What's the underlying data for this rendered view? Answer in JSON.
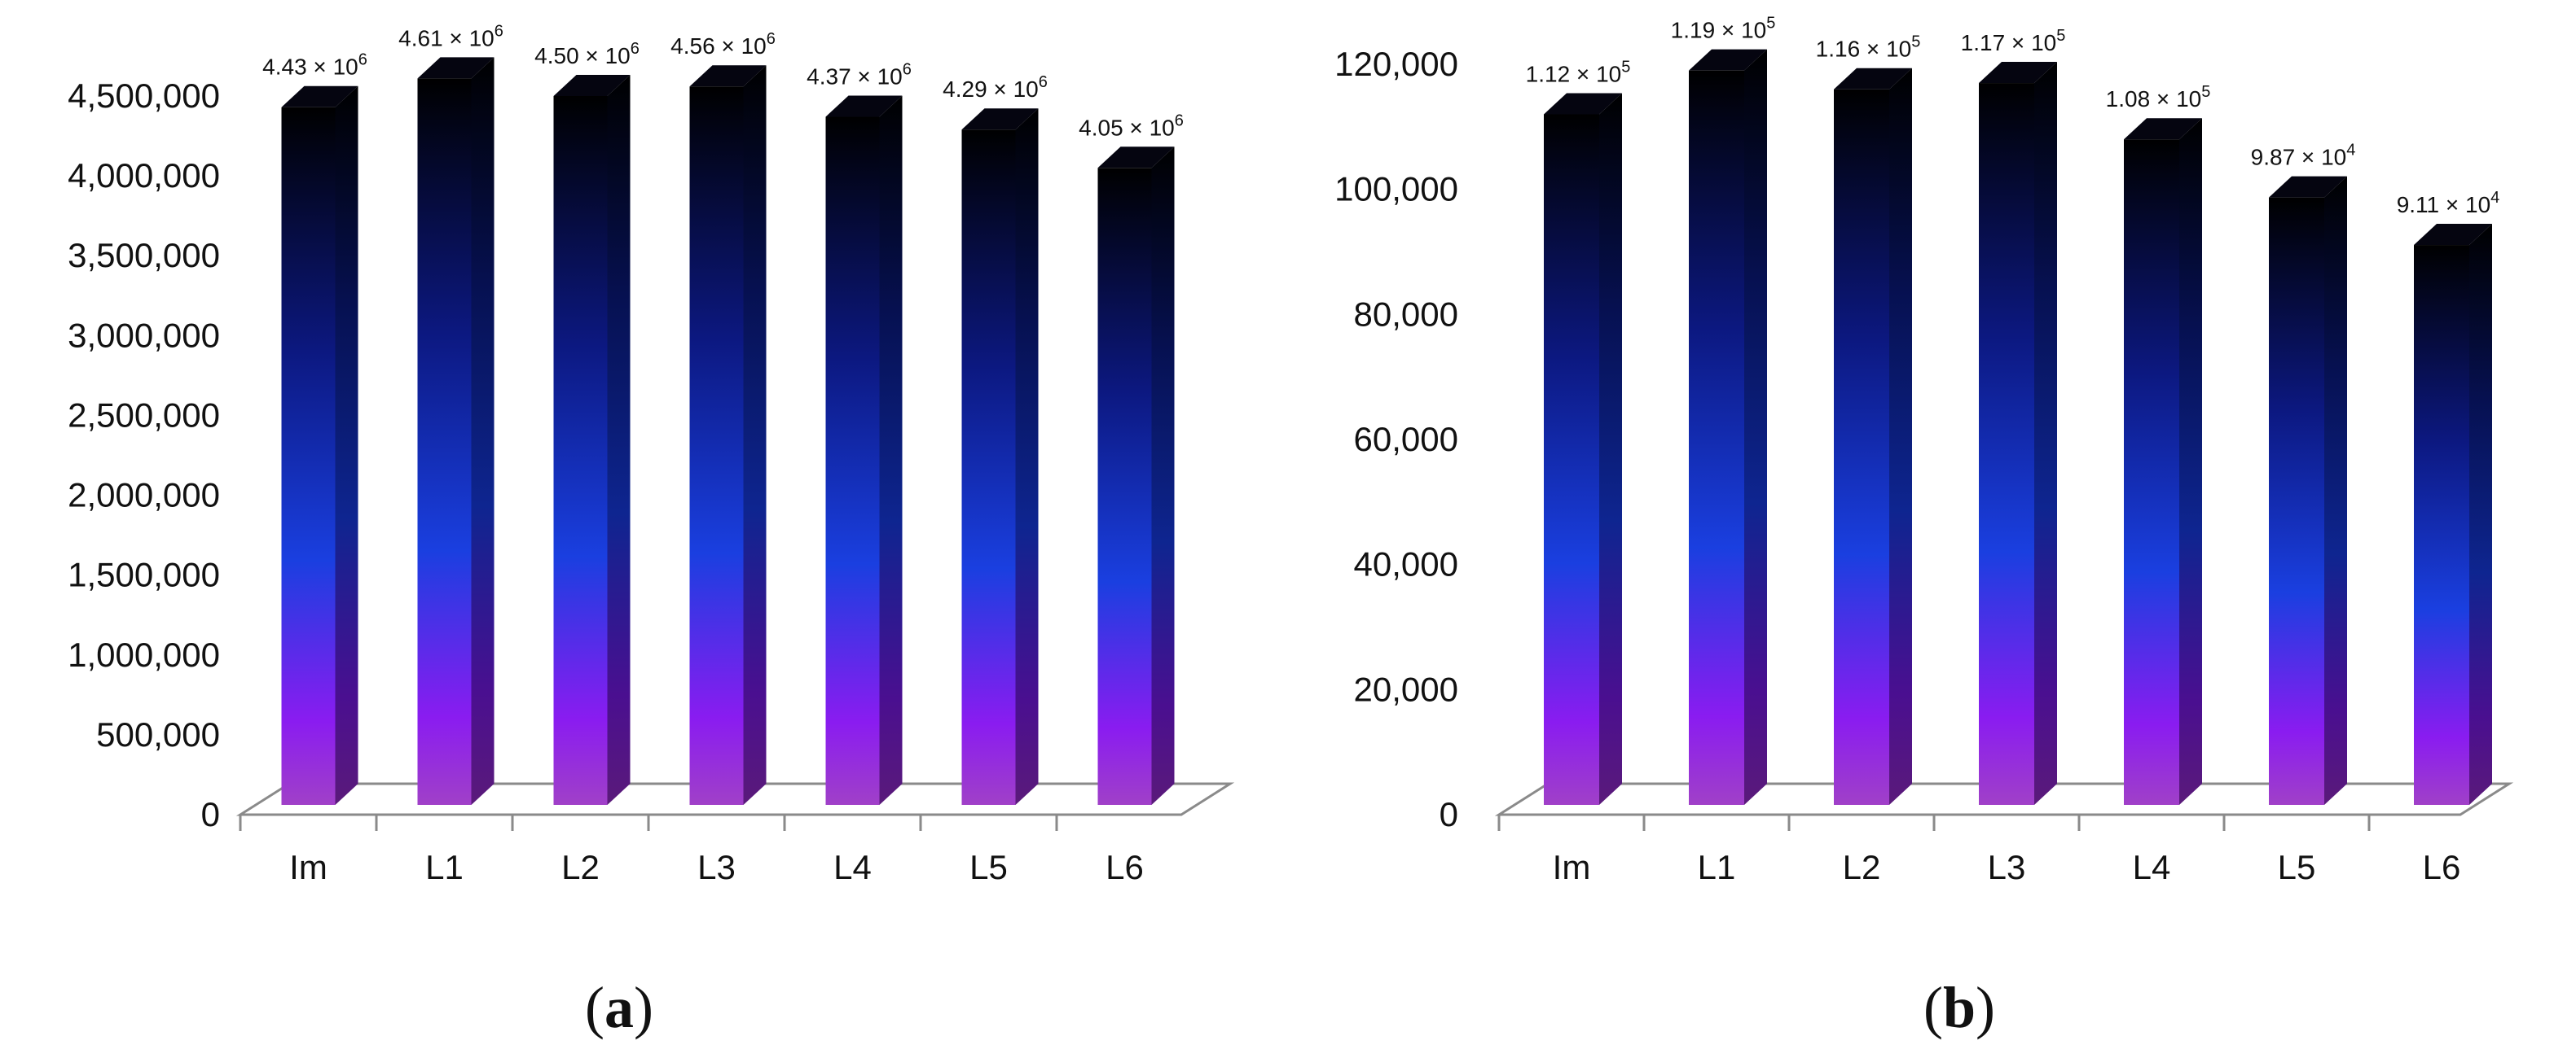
{
  "chart_data": [
    {
      "type": "bar",
      "panel_label": "a",
      "categories": [
        "Im",
        "L1",
        "L2",
        "L3",
        "L4",
        "L5",
        "L6"
      ],
      "values": [
        4430000,
        4610000,
        4500000,
        4560000,
        4370000,
        4290000,
        4050000
      ],
      "data_labels": [
        {
          "mantissa": "4.43 × 10",
          "exp": "6"
        },
        {
          "mantissa": "4.61 × 10",
          "exp": "6"
        },
        {
          "mantissa": "4.50 × 10",
          "exp": "6"
        },
        {
          "mantissa": "4.56 × 10",
          "exp": "6"
        },
        {
          "mantissa": "4.37 × 10",
          "exp": "6"
        },
        {
          "mantissa": "4.29 × 10",
          "exp": "6"
        },
        {
          "mantissa": "4.05 × 10",
          "exp": "6"
        }
      ],
      "ylim": [
        0,
        4500000
      ],
      "yticks": [
        0,
        500000,
        1000000,
        1500000,
        2000000,
        2500000,
        3000000,
        3500000,
        4000000,
        4500000
      ],
      "ytick_labels": [
        "0",
        "500,000",
        "1,000,000",
        "1,500,000",
        "2,000,000",
        "2,500,000",
        "3,000,000",
        "3,500,000",
        "4,000,000",
        "4,500,000"
      ],
      "grid": false,
      "style": "3d-column-gradient",
      "colors": {
        "bottom": "#9b3fd6",
        "mid": "#1733d8",
        "top": "#000000",
        "side": "#0a0a40",
        "floor": "#888888"
      }
    },
    {
      "type": "bar",
      "panel_label": "b",
      "categories": [
        "Im",
        "L1",
        "L2",
        "L3",
        "L4",
        "L5",
        "L6"
      ],
      "values": [
        112000,
        119000,
        116000,
        117000,
        108000,
        98700,
        91100
      ],
      "data_labels": [
        {
          "mantissa": "1.12 × 10",
          "exp": "5"
        },
        {
          "mantissa": "1.19 × 10",
          "exp": "5"
        },
        {
          "mantissa": "1.16 × 10",
          "exp": "5"
        },
        {
          "mantissa": "1.17 × 10",
          "exp": "5"
        },
        {
          "mantissa": "1.08 × 10",
          "exp": "5"
        },
        {
          "mantissa": "9.87 × 10",
          "exp": "4"
        },
        {
          "mantissa": "9.11 × 10",
          "exp": "4"
        }
      ],
      "ylim": [
        0,
        120000
      ],
      "yticks": [
        0,
        20000,
        40000,
        60000,
        80000,
        100000,
        120000
      ],
      "ytick_labels": [
        "0",
        "20,000",
        "40,000",
        "60,000",
        "80,000",
        "100,000",
        "120,000"
      ],
      "grid": false,
      "style": "3d-column-gradient",
      "colors": {
        "bottom": "#9b3fd6",
        "mid": "#1733d8",
        "top": "#000000",
        "side": "#0a0a40",
        "floor": "#888888"
      }
    }
  ]
}
